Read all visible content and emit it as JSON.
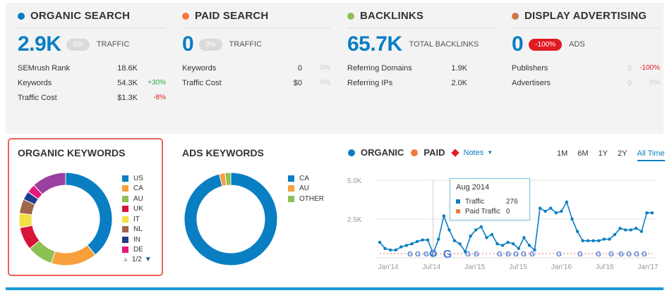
{
  "colors": {
    "blue": "#0a7ec2",
    "orange": "#f37b3a",
    "green": "#8cc152",
    "brown": "#d0784a",
    "red": "#e21a22"
  },
  "cards": [
    {
      "title": "ORGANIC SEARCH",
      "dot": "#0a7ec2",
      "big": "2.9K",
      "pill": "0%",
      "pill_red": false,
      "unit": "TRAFFIC",
      "rows": [
        {
          "label": "SEMrush Rank",
          "value": "18.6K",
          "change": ""
        },
        {
          "label": "Keywords",
          "value": "54.3K",
          "change": "+30%",
          "dir": "pos"
        },
        {
          "label": "Traffic Cost",
          "value": "$1.3K",
          "change": "-8%",
          "dir": "neg"
        }
      ]
    },
    {
      "title": "PAID SEARCH",
      "dot": "#f37b3a",
      "big": "0",
      "pill": "0%",
      "pill_red": false,
      "unit": "TRAFFIC",
      "rows": [
        {
          "label": "Keywords",
          "value": "0",
          "change": "0%",
          "dir": "none"
        },
        {
          "label": "Traffic Cost",
          "value": "$0",
          "change": "0%",
          "dir": "none"
        }
      ]
    },
    {
      "title": "BACKLINKS",
      "dot": "#8cc152",
      "big": "65.7K",
      "pill": "",
      "pill_red": false,
      "unit": "TOTAL BACKLINKS",
      "rows": [
        {
          "label": "Referring Domains",
          "value": "1.9K",
          "change": ""
        },
        {
          "label": "Referring IPs",
          "value": "2.0K",
          "change": ""
        }
      ]
    },
    {
      "title": "DISPLAY ADVERTISING",
      "dot": "#d0784a",
      "big": "0",
      "pill": "-100%",
      "pill_red": true,
      "unit": "ADS",
      "rows": [
        {
          "label": "Publishers",
          "value": "0",
          "change": "-100%",
          "dir": "neg",
          "grey": true
        },
        {
          "label": "Advertisers",
          "value": "0",
          "change": "0%",
          "dir": "none",
          "grey": true
        }
      ]
    }
  ],
  "organic_keywords": {
    "title": "ORGANIC KEYWORDS",
    "legend": [
      {
        "label": "US",
        "color": "#0a7ec2"
      },
      {
        "label": "CA",
        "color": "#f7a03c"
      },
      {
        "label": "AU",
        "color": "#8cc152"
      },
      {
        "label": "UK",
        "color": "#d8143a"
      },
      {
        "label": "IT",
        "color": "#f2e045"
      },
      {
        "label": "NL",
        "color": "#a0664a"
      },
      {
        "label": "IN",
        "color": "#1e3d8c"
      },
      {
        "label": "DE",
        "color": "#e8197c"
      }
    ],
    "pager": "1/2"
  },
  "ads_keywords": {
    "title": "ADS KEYWORDS",
    "legend": [
      {
        "label": "CA",
        "color": "#0a7ec2"
      },
      {
        "label": "AU",
        "color": "#f7a03c"
      },
      {
        "label": "OTHER",
        "color": "#8cc152"
      }
    ]
  },
  "chart_head": {
    "organic": "ORGANIC",
    "paid": "PAID",
    "notes": "Notes"
  },
  "ranges": [
    "1M",
    "6M",
    "1Y",
    "2Y",
    "All Time"
  ],
  "tooltip": {
    "title": "Aug 2014",
    "traffic_label": "Traffic",
    "traffic_value": "276",
    "paid_label": "Paid Traffic",
    "paid_value": "0"
  },
  "chart_data": [
    {
      "type": "pie",
      "title": "ORGANIC KEYWORDS",
      "categories": [
        "US",
        "CA",
        "AU",
        "UK",
        "IT",
        "NL",
        "IN",
        "DE",
        "other"
      ],
      "values": [
        39,
        16,
        9,
        8,
        5,
        5,
        3,
        3,
        12
      ]
    },
    {
      "type": "pie",
      "title": "ADS KEYWORDS",
      "categories": [
        "CA",
        "AU",
        "OTHER"
      ],
      "values": [
        96,
        2,
        2
      ]
    },
    {
      "type": "line",
      "ylim": [
        0,
        5000
      ],
      "yticks": [
        "5.0K",
        "2.5K"
      ],
      "xticks": [
        "Jan'14",
        "Jul'14",
        "Jan'15",
        "Jul'15",
        "Jan'16",
        "Jul'16",
        "Jan'17"
      ],
      "series": [
        {
          "name": "ORGANIC",
          "values": [
            1000,
            600,
            500,
            500,
            700,
            800,
            900,
            1050,
            1150,
            1150,
            276,
            1200,
            2700,
            1800,
            1100,
            900,
            400,
            1400,
            1800,
            2000,
            1300,
            1500,
            900,
            800,
            1000,
            900,
            600,
            1300,
            800,
            500,
            3200,
            3000,
            3200,
            2900,
            3000,
            3600,
            2500,
            1700,
            1100,
            1100,
            1100,
            1100,
            1200,
            1200,
            1500,
            1900,
            1800,
            1800,
            1900,
            1700,
            2900,
            2900
          ]
        },
        {
          "name": "PAID",
          "values": []
        }
      ]
    }
  ]
}
